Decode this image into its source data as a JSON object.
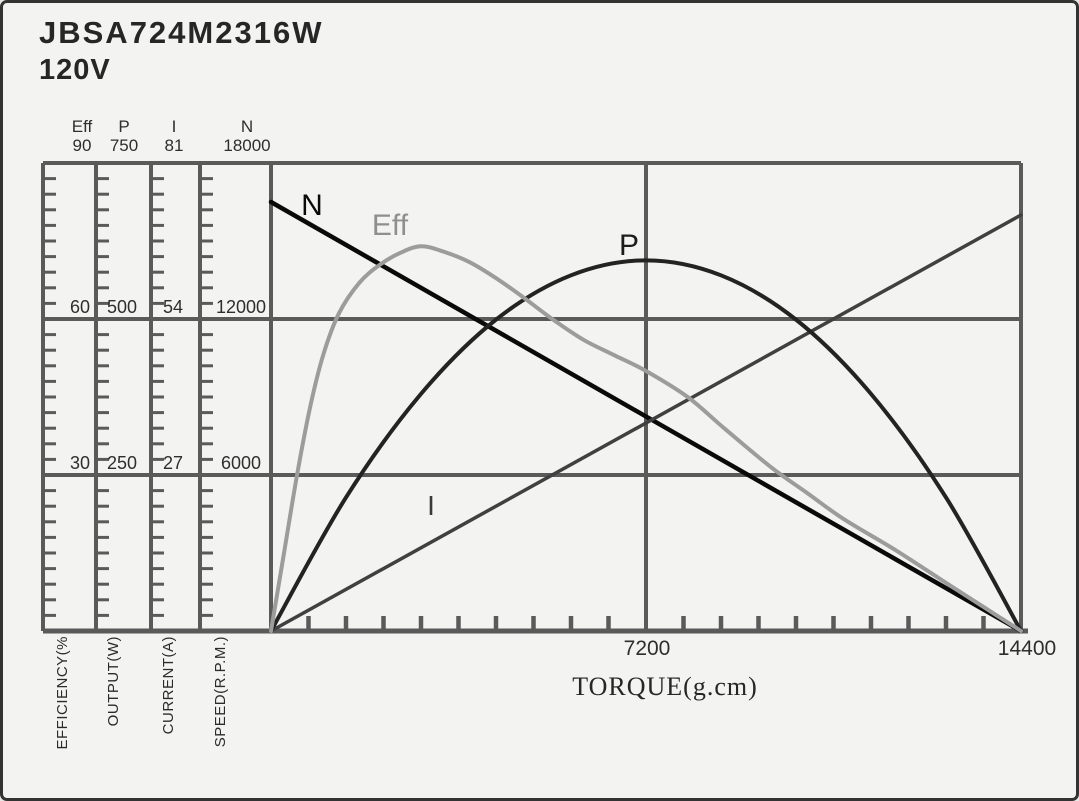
{
  "header": {
    "model": "JBSA724M2316W",
    "voltage": "120V"
  },
  "scales": [
    {
      "name": "Eff",
      "max": "90",
      "mid_upper": "60",
      "mid_lower": "30",
      "axis_label": "EFFICIENCY(%"
    },
    {
      "name": "P",
      "max": "750",
      "mid_upper": "500",
      "mid_lower": "250",
      "axis_label": "OUTPUT(W)"
    },
    {
      "name": "I",
      "max": "81",
      "mid_upper": "54",
      "mid_lower": "27",
      "axis_label": "CURRENT(A)"
    },
    {
      "name": "N",
      "max": "18000",
      "mid_upper": "12000",
      "mid_lower": "6000",
      "axis_label": "SPEED(R.P.M.)"
    }
  ],
  "x_axis": {
    "title": "TORQUE(g.cm)",
    "mid_tick": "7200",
    "max_tick": "14400"
  },
  "colors": {
    "grid": "#5a5a5a",
    "n_curve": "#0a0a0a",
    "eff_curve": "#9c9c9c",
    "p_curve": "#232323",
    "i_curve": "#404040",
    "text": "#2b2b2b",
    "background": "#f3f3f1"
  },
  "chart_data": {
    "type": "line",
    "title": "JBSA724M2316W 120V motor performance curves",
    "xlabel": "TORQUE(g.cm)",
    "x_range": [
      0,
      14400
    ],
    "x_ticks": [
      0,
      7200,
      14400
    ],
    "grid": true,
    "legend_position": "inline-curve-labels",
    "y_axes": [
      {
        "label": "EFFICIENCY(%)",
        "range": [
          0,
          90
        ],
        "ticks": [
          30,
          60,
          90
        ]
      },
      {
        "label": "OUTPUT(W)",
        "range": [
          0,
          750
        ],
        "ticks": [
          250,
          500,
          750
        ]
      },
      {
        "label": "CURRENT(A)",
        "range": [
          0,
          81
        ],
        "ticks": [
          27,
          54,
          81
        ]
      },
      {
        "label": "SPEED(R.P.M.)",
        "range": [
          0,
          18000
        ],
        "ticks": [
          6000,
          12000,
          18000
        ]
      }
    ],
    "series": [
      {
        "name": "N",
        "axis": "SPEED(R.P.M.)",
        "axis_max": 18000,
        "color": "#0a0a0a",
        "width": 4.5,
        "points": [
          [
            0,
            16500
          ],
          [
            14400,
            0
          ]
        ]
      },
      {
        "name": "I",
        "axis": "CURRENT(A)",
        "axis_max": 81,
        "color": "#404040",
        "width": 3.5,
        "points": [
          [
            0,
            0
          ],
          [
            14400,
            72
          ]
        ]
      },
      {
        "name": "P",
        "axis": "OUTPUT(W)",
        "axis_max": 750,
        "color": "#232323",
        "width": 4,
        "points": [
          [
            0,
            0
          ],
          [
            1440,
            214
          ],
          [
            2880,
            380
          ],
          [
            4320,
            499
          ],
          [
            5760,
            570
          ],
          [
            7200,
            594
          ],
          [
            8640,
            570
          ],
          [
            10080,
            499
          ],
          [
            11520,
            380
          ],
          [
            12960,
            214
          ],
          [
            14400,
            0
          ]
        ]
      },
      {
        "name": "Eff",
        "axis": "EFFICIENCY(%)",
        "axis_max": 90,
        "color": "#9c9c9c",
        "width": 4,
        "points": [
          [
            0,
            0
          ],
          [
            250,
            15
          ],
          [
            500,
            30
          ],
          [
            750,
            43
          ],
          [
            1000,
            53
          ],
          [
            1300,
            61
          ],
          [
            1700,
            67
          ],
          [
            2100,
            70.5
          ],
          [
            2500,
            72.8
          ],
          [
            2880,
            74
          ],
          [
            3300,
            73
          ],
          [
            3800,
            71
          ],
          [
            4300,
            68
          ],
          [
            4800,
            64.5
          ],
          [
            5400,
            60
          ],
          [
            6000,
            56
          ],
          [
            6600,
            53
          ],
          [
            7200,
            50
          ],
          [
            8000,
            45
          ],
          [
            8700,
            39
          ],
          [
            9600,
            31.5
          ],
          [
            10300,
            26.5
          ],
          [
            11000,
            21.5
          ],
          [
            12000,
            15.5
          ],
          [
            13000,
            9
          ],
          [
            13700,
            4.5
          ],
          [
            14400,
            0
          ]
        ]
      }
    ]
  }
}
